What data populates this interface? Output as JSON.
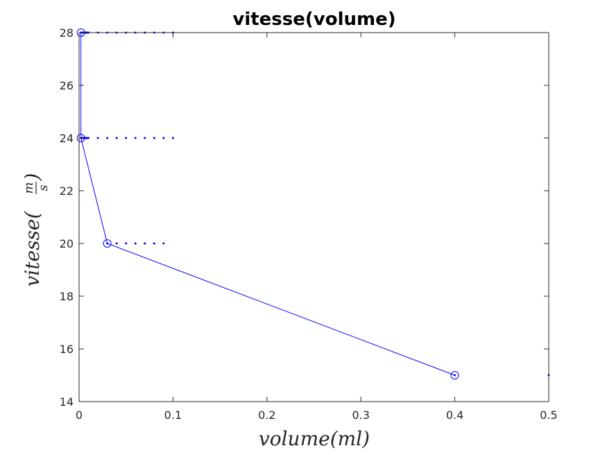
{
  "chart_data": {
    "type": "line",
    "title": "vitesse(volume)",
    "xlabel": "volume(ml)",
    "ylabel_text": "vitesse(",
    "ylabel_frac_num": "m",
    "ylabel_frac_den": "s",
    "ylabel_close": ")",
    "xlim": [
      0,
      0.5
    ],
    "ylim": [
      14,
      28
    ],
    "xticks": [
      0,
      0.1,
      0.2,
      0.3,
      0.4,
      0.5
    ],
    "xtick_labels": [
      "0",
      "0.1",
      "0.2",
      "0.3",
      "0.4",
      "0.5"
    ],
    "yticks": [
      14,
      16,
      18,
      20,
      22,
      24,
      26,
      28
    ],
    "ytick_labels": [
      "14",
      "16",
      "18",
      "20",
      "22",
      "24",
      "26",
      "28"
    ],
    "grid": false,
    "color": "#0000ff",
    "series": [
      {
        "style": "line-circle",
        "x": [
          0.002,
          0.002,
          0.03,
          0.4
        ],
        "y": [
          28,
          24,
          20,
          15
        ]
      },
      {
        "style": "dots",
        "x": [
          0.002,
          0.003,
          0.004,
          0.005,
          0.006,
          0.007,
          0.008,
          0.009,
          0.01,
          0.02,
          0.03,
          0.04,
          0.05,
          0.06,
          0.07,
          0.08,
          0.09,
          0.1
        ],
        "y": [
          28,
          28,
          28,
          28,
          28,
          28,
          28,
          28,
          28,
          28,
          28,
          28,
          28,
          28,
          28,
          28,
          28,
          28
        ]
      },
      {
        "style": "dots",
        "x": [
          0.002,
          0.003,
          0.004,
          0.005,
          0.006,
          0.007,
          0.008,
          0.009,
          0.01,
          0.02,
          0.03,
          0.04,
          0.05,
          0.06,
          0.07,
          0.08,
          0.09,
          0.1
        ],
        "y": [
          24,
          24,
          24,
          24,
          24,
          24,
          24,
          24,
          24,
          24,
          24,
          24,
          24,
          24,
          24,
          24,
          24,
          24
        ]
      },
      {
        "style": "dots",
        "x": [
          0.03,
          0.04,
          0.05,
          0.06,
          0.07,
          0.08,
          0.09
        ],
        "y": [
          20,
          20,
          20,
          20,
          20,
          20,
          20
        ]
      },
      {
        "style": "dots",
        "x": [
          0.4,
          0.5
        ],
        "y": [
          15,
          15
        ]
      }
    ]
  }
}
